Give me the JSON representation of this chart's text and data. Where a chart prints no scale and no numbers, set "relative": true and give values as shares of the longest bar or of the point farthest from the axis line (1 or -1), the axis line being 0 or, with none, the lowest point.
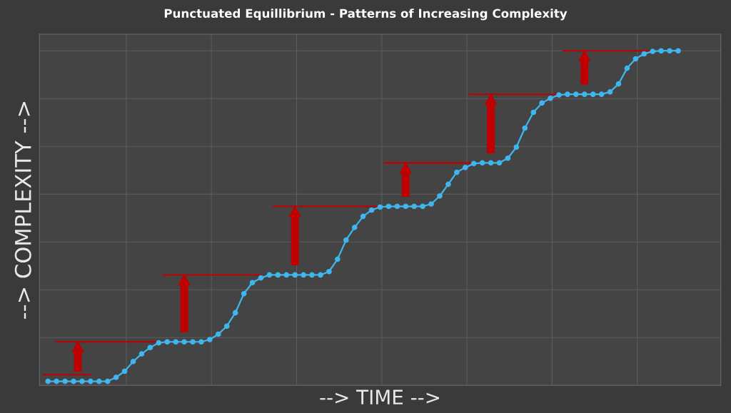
{
  "chart_data": {
    "type": "line",
    "title": "Punctuated Equillibrium - Patterns of Increasing Complexity",
    "xlabel": "--> TIME -->",
    "ylabel": "--> COMPLEXITY -->",
    "relative": true,
    "grid": true,
    "marker": "circle",
    "line_style": "solid",
    "categories": [
      null,
      null,
      null,
      null,
      null,
      null,
      null,
      null,
      null,
      null,
      null,
      null,
      null,
      null,
      null,
      null,
      null,
      null,
      null,
      null,
      null,
      null,
      null,
      null,
      null,
      null,
      null,
      null,
      null,
      null,
      null,
      null,
      null,
      null,
      null,
      null,
      null,
      null,
      null,
      null,
      null,
      null,
      null,
      null,
      null,
      null,
      null,
      null,
      null,
      null,
      null,
      null,
      null,
      null,
      null,
      null,
      null,
      null,
      null,
      null,
      null,
      null,
      null,
      null,
      null,
      null,
      null,
      null,
      null,
      null,
      null,
      null,
      null,
      null,
      null
    ],
    "series": [
      {
        "color": "#3fb6ee",
        "values": [
          0.012,
          0.012,
          0.012,
          0.012,
          0.012,
          0.012,
          0.012,
          0.012,
          0.024,
          0.042,
          0.071,
          0.094,
          0.113,
          0.127,
          0.13,
          0.13,
          0.13,
          0.13,
          0.13,
          0.137,
          0.153,
          0.177,
          0.217,
          0.274,
          0.307,
          0.321,
          0.33,
          0.33,
          0.33,
          0.33,
          0.33,
          0.33,
          0.33,
          0.34,
          0.377,
          0.434,
          0.472,
          0.505,
          0.524,
          0.533,
          0.535,
          0.535,
          0.535,
          0.535,
          0.535,
          0.542,
          0.566,
          0.601,
          0.637,
          0.651,
          0.663,
          0.665,
          0.665,
          0.665,
          0.679,
          0.712,
          0.769,
          0.816,
          0.844,
          0.858,
          0.868,
          0.87,
          0.87,
          0.87,
          0.87,
          0.87,
          0.877,
          0.901,
          0.948,
          0.976,
          0.991,
          0.998,
          1,
          1,
          1
        ]
      }
    ]
  }
}
